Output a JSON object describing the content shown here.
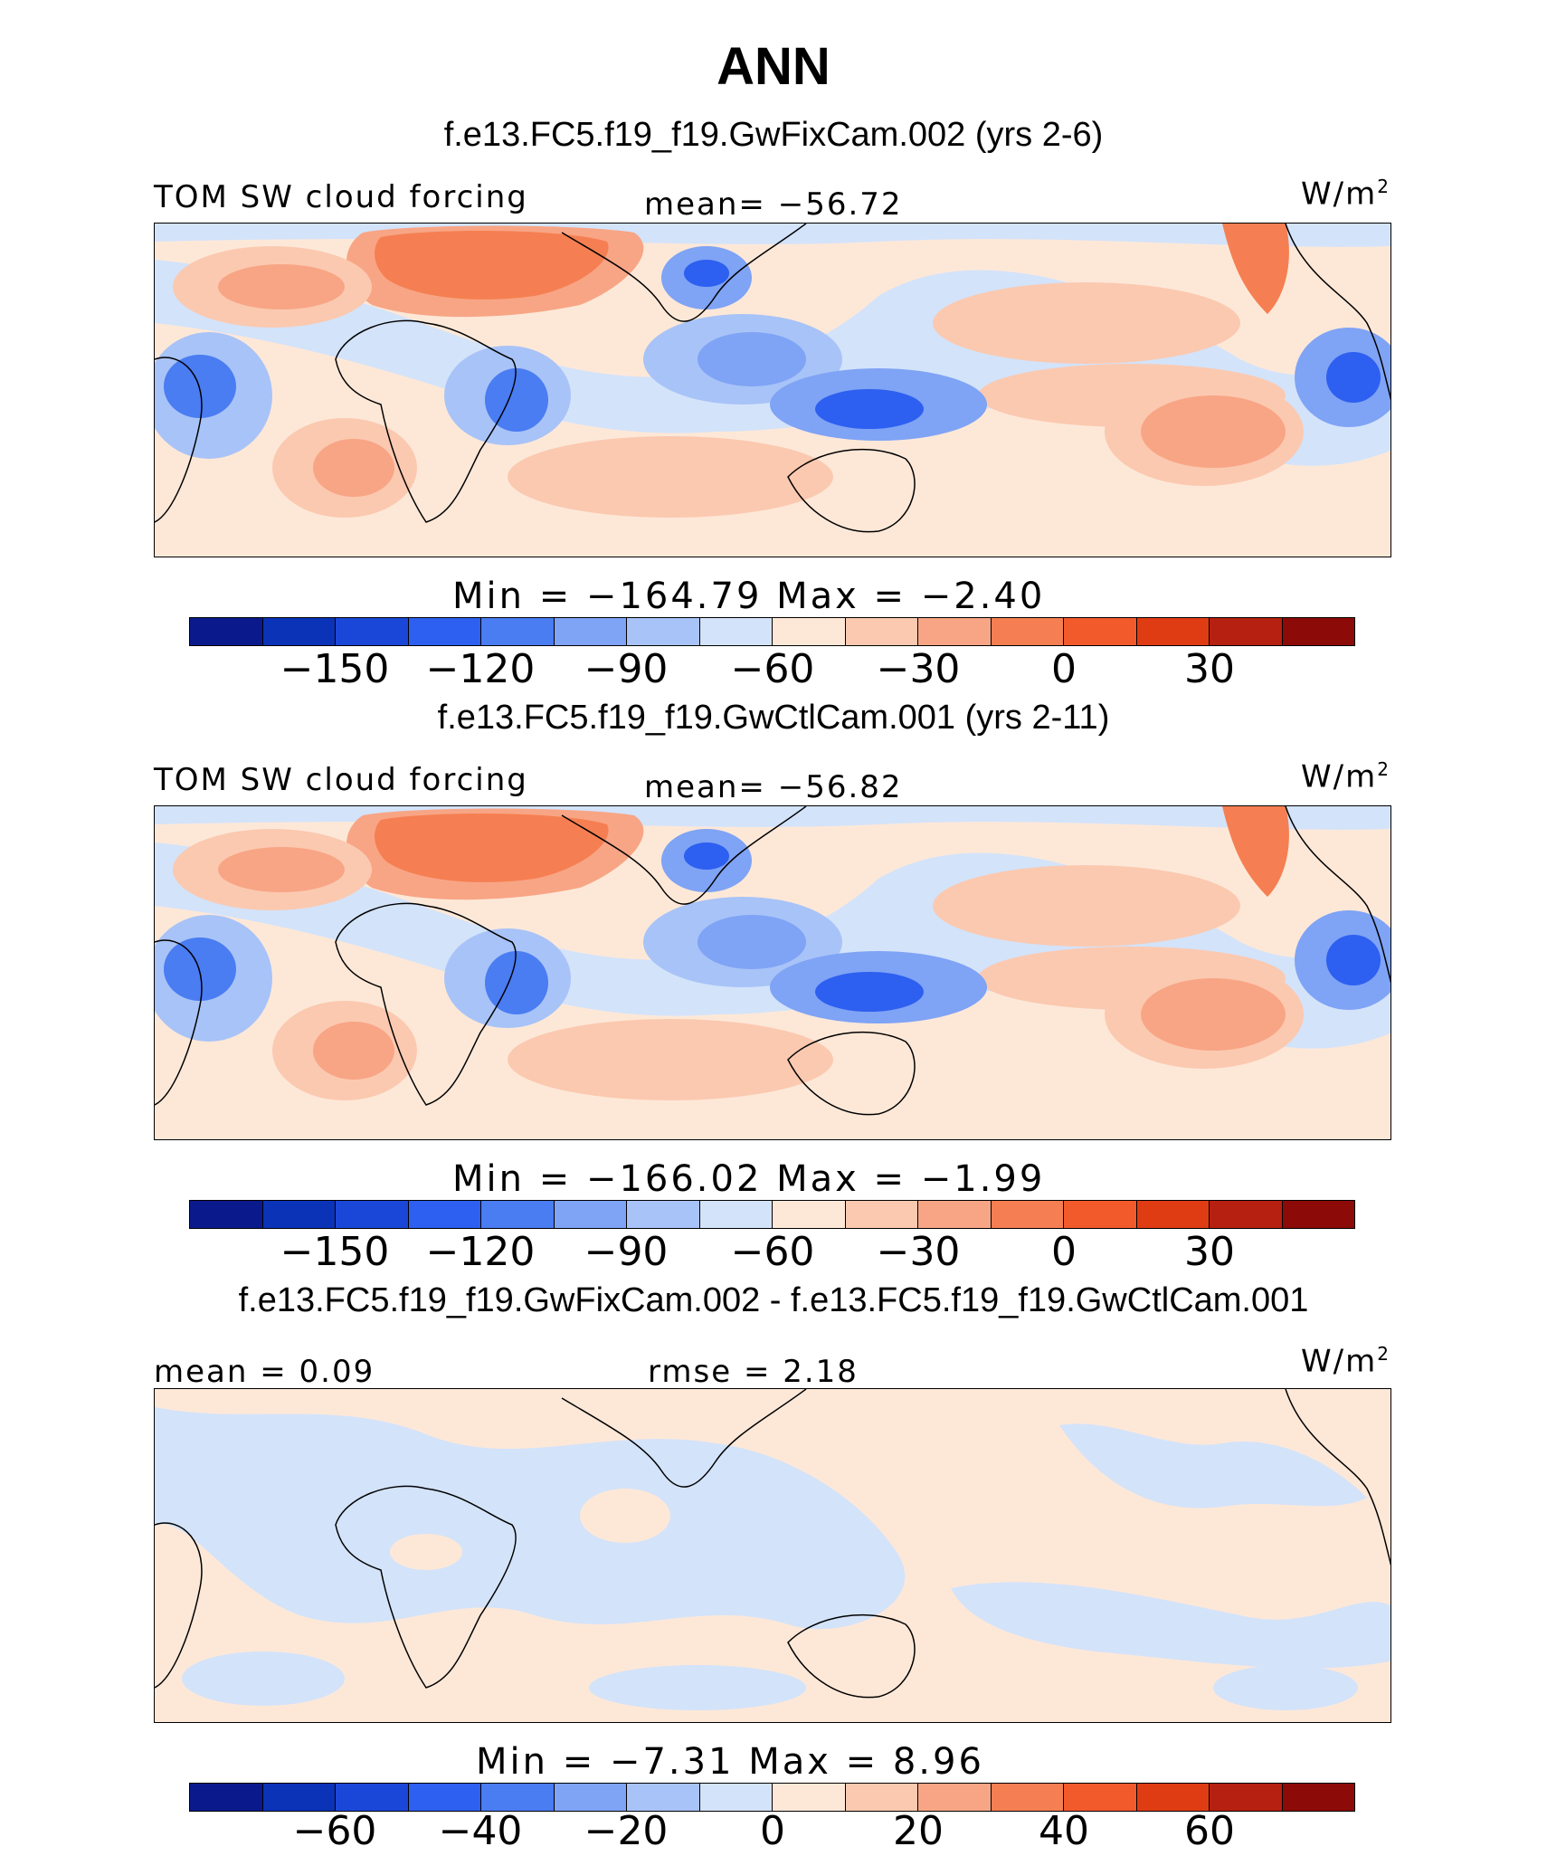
{
  "title": "ANN",
  "colors": [
    "#0a1a8c",
    "#0b33b8",
    "#1b47d8",
    "#2d5ff0",
    "#4a7cf2",
    "#7fa3f5",
    "#a8c3f7",
    "#d3e3fa",
    "#fde8d8",
    "#fbc9b0",
    "#f8a585",
    "#f57f52",
    "#f25a2c",
    "#e03c14",
    "#b52010",
    "#8c0a08"
  ],
  "panels": [
    {
      "case": "f.e13.FC5.f19_f19.GwFixCam.002 (yrs 2-6)",
      "left_label": "TOM SW cloud forcing",
      "center_label": "mean= −56.72",
      "units": "W/m",
      "units_sup": "2",
      "stats": "Min  = −164.79  Max  =   −2.40",
      "ticks": [
        "−150",
        "−120",
        "−90",
        "−60",
        "−30",
        "0",
        "30"
      ]
    },
    {
      "case": "f.e13.FC5.f19_f19.GwCtlCam.001 (yrs 2-11)",
      "left_label": "TOM SW cloud forcing",
      "center_label": "mean= −56.82",
      "units": "W/m",
      "units_sup": "2",
      "stats": "Min  = −166.02  Max  =   −1.99",
      "ticks": [
        "−150",
        "−120",
        "−90",
        "−60",
        "−30",
        "0",
        "30"
      ]
    },
    {
      "case": "f.e13.FC5.f19_f19.GwFixCam.002 - f.e13.FC5.f19_f19.GwCtlCam.001",
      "left_label": "mean =    0.09",
      "center_label": "rmse =    2.18",
      "units": "W/m",
      "units_sup": "2",
      "stats": "Min  =   −7.31  Max  =     8.96",
      "ticks": [
        "−60",
        "−40",
        "−20",
        "0",
        "20",
        "40",
        "60"
      ]
    }
  ]
}
